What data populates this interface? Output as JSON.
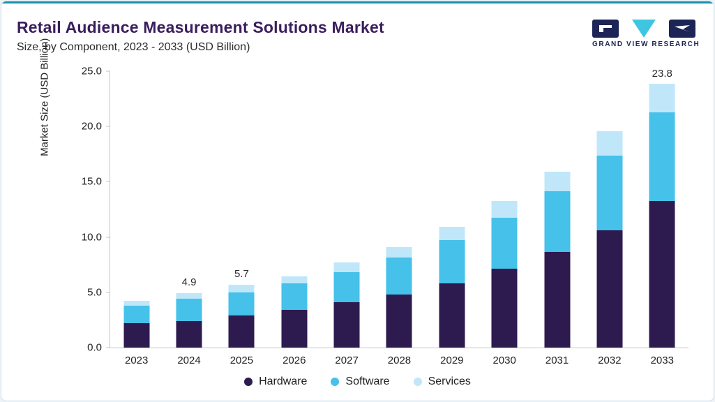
{
  "header": {
    "title": "Retail Audience Measurement Solutions Market",
    "subtitle": "Size, by Component, 2023 - 2033 (USD Billion)"
  },
  "logo": {
    "text": "GRAND VIEW RESEARCH",
    "navy": "#1d2556",
    "teal": "#3ec6e0"
  },
  "colors": {
    "accent_line": "#1a93ad",
    "title": "#3a1d5c"
  },
  "chart_data": {
    "type": "bar",
    "stacked": true,
    "title": "Retail Audience Measurement Solutions Market Size, by Component, 2023 - 2033 (USD Billion)",
    "xlabel": "",
    "ylabel": "Market Size (USD Billion)",
    "ylim": [
      0,
      25
    ],
    "yticks": [
      "0.0",
      "5.0",
      "10.0",
      "15.0",
      "20.0",
      "25.0"
    ],
    "grid": false,
    "legend_position": "bottom",
    "categories": [
      "2023",
      "2024",
      "2025",
      "2026",
      "2027",
      "2028",
      "2029",
      "2030",
      "2031",
      "2032",
      "2033"
    ],
    "series": [
      {
        "name": "Hardware",
        "color": "#2d1b4f",
        "values": [
          2.2,
          2.4,
          2.9,
          3.4,
          4.1,
          4.8,
          5.8,
          7.1,
          8.6,
          10.6,
          13.2
        ]
      },
      {
        "name": "Software",
        "color": "#45c1ea",
        "values": [
          1.6,
          2.0,
          2.1,
          2.4,
          2.7,
          3.3,
          3.9,
          4.6,
          5.5,
          6.7,
          8.0
        ]
      },
      {
        "name": "Services",
        "color": "#bfe7f9",
        "values": [
          0.4,
          0.5,
          0.7,
          0.6,
          0.9,
          1.0,
          1.2,
          1.5,
          1.8,
          2.2,
          2.6
        ]
      }
    ],
    "total_labels": {
      "2024": "4.9",
      "2025": "5.7",
      "2033": "23.8"
    }
  }
}
